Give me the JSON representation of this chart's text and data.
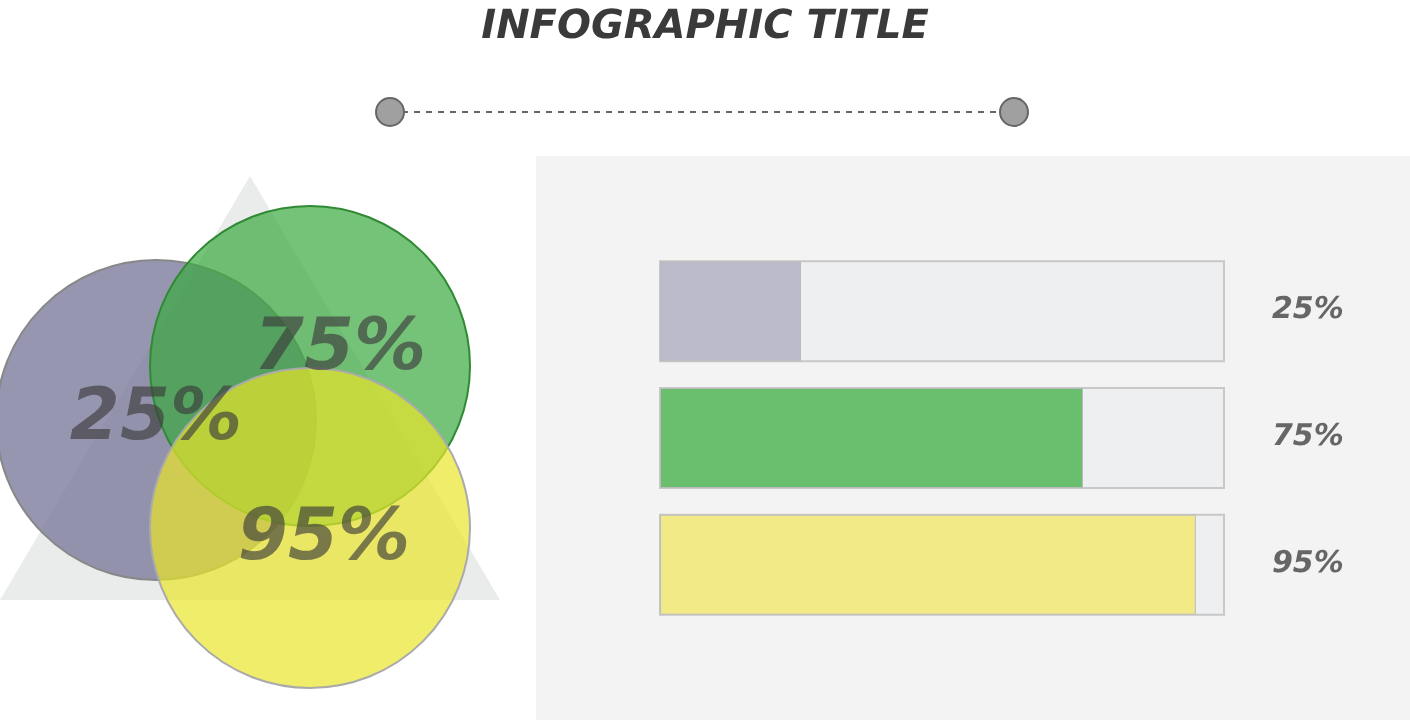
{
  "chart_data": {
    "type": "bar",
    "title": "INFOGRAPHIC TITLE",
    "orientation": "horizontal",
    "categories": [
      null,
      null,
      null
    ],
    "values": [
      25,
      75,
      95
    ],
    "colors": [
      "#bbbbcb",
      "#6abf6e",
      "#f2ea86"
    ],
    "value_labels": [
      "25%",
      "75%",
      "95%"
    ],
    "xlim": [
      0,
      100
    ],
    "tick_labels": false
  }
}
